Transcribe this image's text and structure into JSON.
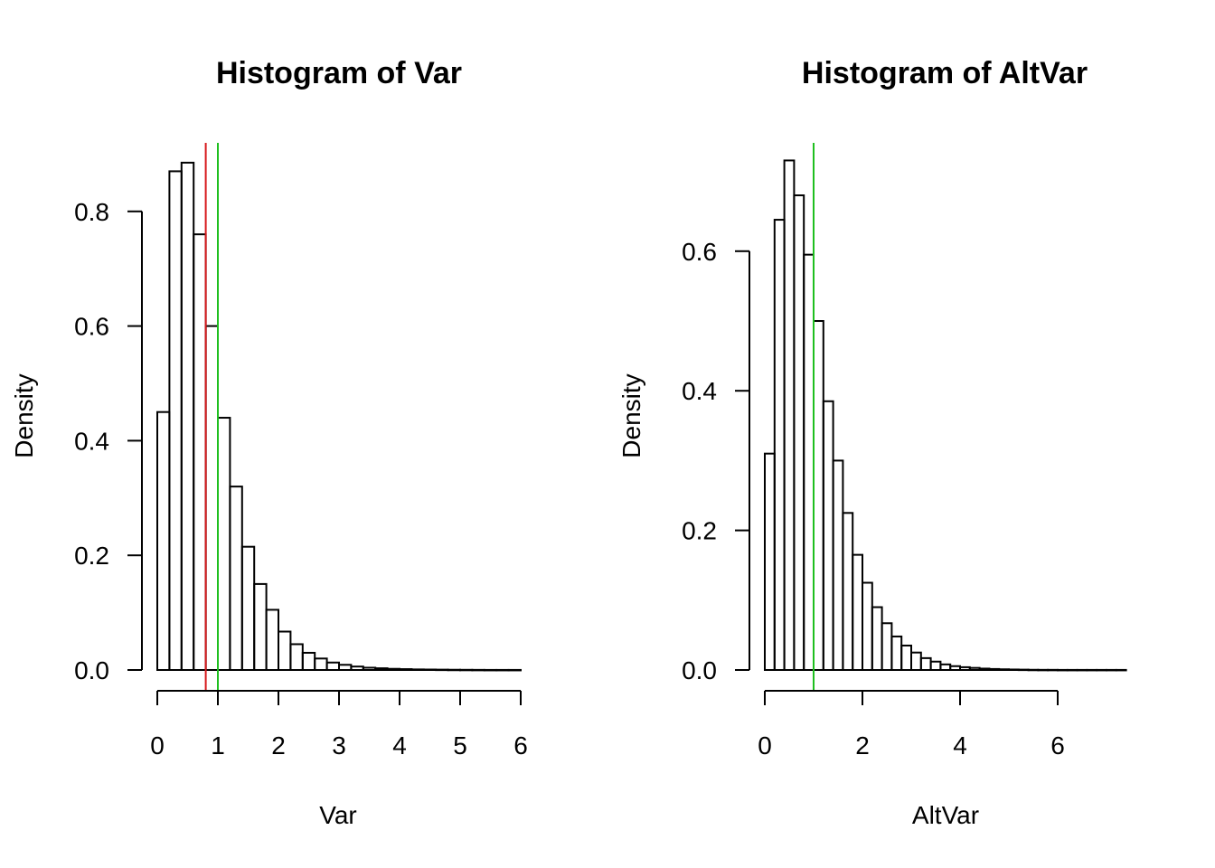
{
  "chart_data": [
    {
      "type": "histogram",
      "title": "Histogram of Var",
      "xlabel": "Var",
      "ylabel": "Density",
      "xlim": [
        0,
        6
      ],
      "ylim": [
        0,
        0.9
      ],
      "x_ticks": [
        0,
        1,
        2,
        3,
        4,
        5,
        6
      ],
      "y_ticks": [
        0.0,
        0.2,
        0.4,
        0.6,
        0.8
      ],
      "bin_width": 0.2,
      "bin_start": 0,
      "densities": [
        0.45,
        0.87,
        0.885,
        0.76,
        0.6,
        0.44,
        0.32,
        0.215,
        0.15,
        0.105,
        0.067,
        0.045,
        0.03,
        0.02,
        0.013,
        0.009,
        0.006,
        0.004,
        0.003,
        0.002,
        0.0015,
        0.001,
        0.0008,
        0.0006,
        0.0004,
        0.0003,
        0.0002,
        0.0001,
        0.0001,
        0.0001
      ],
      "vlines": [
        {
          "x": 0.8,
          "color": "#d7191c"
        },
        {
          "x": 1.0,
          "color": "#1fbf1f"
        }
      ]
    },
    {
      "type": "histogram",
      "title": "Histogram of AltVar",
      "xlabel": "AltVar",
      "ylabel": "Density",
      "xlim": [
        0,
        7.4
      ],
      "ylim": [
        0,
        0.73
      ],
      "x_ticks": [
        0,
        2,
        4,
        6
      ],
      "y_ticks": [
        0.0,
        0.2,
        0.4,
        0.6
      ],
      "bin_width": 0.2,
      "bin_start": 0,
      "densities": [
        0.31,
        0.645,
        0.73,
        0.68,
        0.595,
        0.5,
        0.385,
        0.3,
        0.225,
        0.165,
        0.125,
        0.09,
        0.067,
        0.048,
        0.035,
        0.025,
        0.017,
        0.012,
        0.008,
        0.0055,
        0.004,
        0.003,
        0.002,
        0.0014,
        0.001,
        0.0007,
        0.0005,
        0.0003,
        0.0002,
        0.0002,
        0.0001,
        0.0001,
        0.0001,
        0.0001,
        0.0001,
        0.0001,
        0.0001
      ],
      "vlines": [
        {
          "x": 1.0,
          "color": "#1fbf1f"
        }
      ]
    }
  ]
}
